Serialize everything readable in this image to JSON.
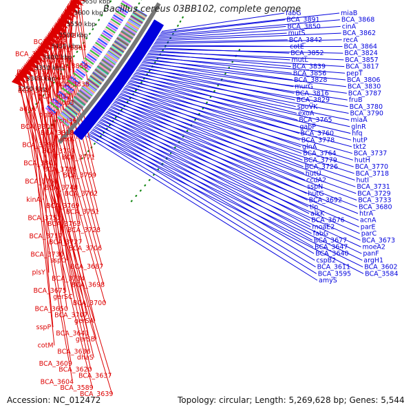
{
  "title": "Bacillus cereus 03BB102, complete genome",
  "footer": {
    "accession": "Accession: NC_012472",
    "stats": "Topology: circular; Length: 5,269,628 bp; Genes: 5,544"
  },
  "colors": {
    "forward": "#0000dd",
    "reverse": "#dd0000",
    "backbone": "#777777",
    "dots": "#1a8a1a"
  },
  "scale_labels": [
    "3650 kbp",
    "3600 kbp",
    "3550 kbp",
    "3500 kbp",
    "3450 kbp",
    "3400 kbp",
    "3350 kbp",
    "3300 kbp",
    "3250 kbp"
  ],
  "forward_genes": [
    "fabG",
    "miaB",
    "BCA_3891",
    "BCA_3868",
    "BCA_3850",
    "cinA",
    "mutS",
    "BCA_3862",
    "BCA_3842",
    "recA",
    "cotE",
    "BCA_3864",
    "BCA_3852",
    "BCA_3824",
    "mutL",
    "BCA_3857",
    "BCA_3839",
    "BCA_3817",
    "BCA_3856",
    "pepT",
    "BCA_3828",
    "BCA_3806",
    "murG",
    "BCA_3830",
    "BCA_3816",
    "BCA_3787",
    "BCA_3829",
    "fruB",
    "spoVK",
    "BCA_3780",
    "exoA",
    "BCA_3790",
    "BCA_3765",
    "miaA",
    "gabP",
    "glnR",
    "BCA_3760",
    "hfq",
    "BCA_3778",
    "hutP",
    "glnA",
    "tkt2",
    "BCA_3764",
    "BCA_3737",
    "BCA_3779",
    "hutH",
    "BCA_3726",
    "BCA_3770",
    "hutU",
    "BCA_3718",
    "ccdA2",
    "hutI",
    "sspN",
    "BCA_3731",
    "hutG",
    "BCA_3729",
    "BCA_3692",
    "BCA_3733",
    "tlp",
    "BCA_3680",
    "alkK",
    "htrA",
    "BCA_3676",
    "acnA",
    "moaE2",
    "parE",
    "fabG",
    "parC",
    "BCA_3677",
    "BCA_3673",
    "BCA_3647",
    "moeA2",
    "BCA_3640",
    "panF",
    "cspB2",
    "argH1",
    "BCA_3611",
    "BCA_3602",
    "BCA_3595",
    "BCA_3584",
    "amyS"
  ],
  "reverse_genes": [
    "rpmB",
    "BCA_3863",
    "BCA_3861",
    "BCA_3860",
    "BCA_3859",
    "BCA_3858",
    "BCA_3851",
    "BCA_3849",
    "BCA_3838",
    "BCA_3848",
    "BCA_3832",
    "hup3",
    "adaA",
    "ogt2",
    "chi36",
    "BCA_3805",
    "BCA_3818",
    "lexA",
    "BCA_3798",
    "BCA_3799",
    "BCA_3771",
    "BCA_3801",
    "BCA_3786",
    "BCA_3759",
    "BCA_3768",
    "BCA_3748",
    "BCA_3762",
    "kinA",
    "BCA_3769",
    "BCA_3751",
    "BCA_3752",
    "BCA_3763",
    "BCA_3728",
    "BCA_3717",
    "BCA_3727",
    "BCA_3706",
    "BCA_3730",
    "sspO",
    "BCA_3687",
    "plsY",
    "BCA_3734",
    "BCA_3698",
    "BCA_3675",
    "gerSC",
    "BCA_3700",
    "BCA_3650",
    "BCA_3707",
    "gerSA",
    "sspP",
    "BCA_3641",
    "gerSB",
    "cotM",
    "BCA_3636",
    "dhaS",
    "BCA_3609",
    "BCA_3620",
    "BCA_3637",
    "BCA_3604",
    "BCA_3589",
    "BCA_3639"
  ]
}
